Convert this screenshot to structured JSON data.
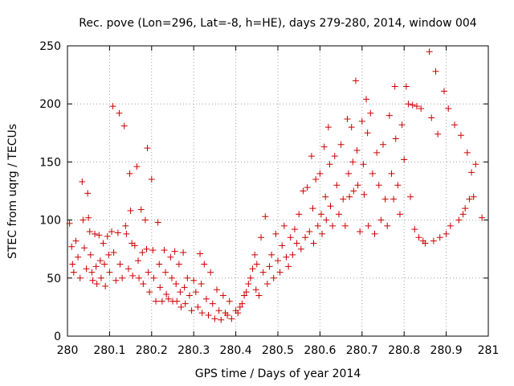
{
  "chart_data": {
    "type": "scatter",
    "title": "Rec. pove (Lon=296, Lat=-8, h=HE), days 279-280, 2014, window 004",
    "xlabel": "GPS time / Days of year 2014",
    "ylabel": "STEC from uqrg / TECUs",
    "xlim": [
      280,
      281
    ],
    "ylim": [
      0,
      250
    ],
    "x_ticks": [
      "280",
      "280.1",
      "280.2",
      "280.3",
      "280.4",
      "280.5",
      "280.6",
      "280.7",
      "280.8",
      "280.9",
      "281"
    ],
    "y_ticks": [
      "0",
      "50",
      "100",
      "150",
      "200",
      "250"
    ],
    "grid": true,
    "marker": "+",
    "marker_color": "#cc0000",
    "points": [
      [
        280.005,
        97
      ],
      [
        280.01,
        77
      ],
      [
        280.012,
        62
      ],
      [
        280.015,
        55
      ],
      [
        280.02,
        82
      ],
      [
        280.025,
        68
      ],
      [
        280.03,
        50
      ],
      [
        280.035,
        133
      ],
      [
        280.037,
        100
      ],
      [
        280.04,
        76
      ],
      [
        280.045,
        58
      ],
      [
        280.048,
        123
      ],
      [
        280.05,
        102
      ],
      [
        280.053,
        90
      ],
      [
        280.055,
        70
      ],
      [
        280.058,
        55
      ],
      [
        280.06,
        48
      ],
      [
        280.065,
        88
      ],
      [
        280.068,
        60
      ],
      [
        280.07,
        45
      ],
      [
        280.075,
        87
      ],
      [
        280.078,
        65
      ],
      [
        280.08,
        50
      ],
      [
        280.085,
        80
      ],
      [
        280.088,
        62
      ],
      [
        280.09,
        43
      ],
      [
        280.095,
        86
      ],
      [
        280.098,
        70
      ],
      [
        280.1,
        55
      ],
      [
        280.105,
        90
      ],
      [
        280.108,
        198
      ],
      [
        280.11,
        72
      ],
      [
        280.115,
        48
      ],
      [
        280.12,
        89
      ],
      [
        280.123,
        192
      ],
      [
        280.125,
        62
      ],
      [
        280.13,
        50
      ],
      [
        280.135,
        181
      ],
      [
        280.138,
        95
      ],
      [
        280.14,
        88
      ],
      [
        280.145,
        58
      ],
      [
        280.148,
        140
      ],
      [
        280.15,
        108
      ],
      [
        280.153,
        80
      ],
      [
        280.155,
        52
      ],
      [
        280.16,
        78
      ],
      [
        280.165,
        146
      ],
      [
        280.168,
        65
      ],
      [
        280.17,
        50
      ],
      [
        280.175,
        109
      ],
      [
        280.178,
        72
      ],
      [
        280.18,
        45
      ],
      [
        280.185,
        100
      ],
      [
        280.188,
        75
      ],
      [
        280.19,
        162
      ],
      [
        280.192,
        55
      ],
      [
        280.195,
        38
      ],
      [
        280.2,
        135
      ],
      [
        280.203,
        74
      ],
      [
        280.205,
        50
      ],
      [
        280.21,
        30
      ],
      [
        280.215,
        98
      ],
      [
        280.218,
        62
      ],
      [
        280.22,
        42
      ],
      [
        280.225,
        30
      ],
      [
        280.23,
        74
      ],
      [
        280.233,
        55
      ],
      [
        280.235,
        36
      ],
      [
        280.24,
        32
      ],
      [
        280.245,
        68
      ],
      [
        280.248,
        50
      ],
      [
        280.25,
        30
      ],
      [
        280.255,
        73
      ],
      [
        280.258,
        45
      ],
      [
        280.26,
        30
      ],
      [
        280.265,
        62
      ],
      [
        280.268,
        38
      ],
      [
        280.27,
        25
      ],
      [
        280.275,
        72
      ],
      [
        280.278,
        42
      ],
      [
        280.28,
        28
      ],
      [
        280.285,
        50
      ],
      [
        280.29,
        35
      ],
      [
        280.295,
        22
      ],
      [
        280.3,
        48
      ],
      [
        280.305,
        38
      ],
      [
        280.31,
        25
      ],
      [
        280.315,
        71
      ],
      [
        280.318,
        45
      ],
      [
        280.32,
        20
      ],
      [
        280.325,
        62
      ],
      [
        280.33,
        32
      ],
      [
        280.335,
        18
      ],
      [
        280.34,
        55
      ],
      [
        280.345,
        28
      ],
      [
        280.35,
        15
      ],
      [
        280.355,
        40
      ],
      [
        280.36,
        22
      ],
      [
        280.365,
        14
      ],
      [
        280.37,
        35
      ],
      [
        280.375,
        20
      ],
      [
        280.38,
        18
      ],
      [
        280.385,
        30
      ],
      [
        280.39,
        15
      ],
      [
        280.4,
        22
      ],
      [
        280.405,
        20
      ],
      [
        280.41,
        25
      ],
      [
        280.415,
        28
      ],
      [
        280.42,
        35
      ],
      [
        280.425,
        38
      ],
      [
        280.43,
        45
      ],
      [
        280.435,
        50
      ],
      [
        280.44,
        58
      ],
      [
        280.445,
        70
      ],
      [
        280.448,
        40
      ],
      [
        280.45,
        62
      ],
      [
        280.455,
        35
      ],
      [
        280.46,
        85
      ],
      [
        280.465,
        55
      ],
      [
        280.47,
        103
      ],
      [
        280.475,
        45
      ],
      [
        280.48,
        60
      ],
      [
        280.485,
        70
      ],
      [
        280.49,
        50
      ],
      [
        280.495,
        88
      ],
      [
        280.5,
        65
      ],
      [
        280.505,
        55
      ],
      [
        280.51,
        78
      ],
      [
        280.515,
        95
      ],
      [
        280.52,
        68
      ],
      [
        280.525,
        60
      ],
      [
        280.53,
        85
      ],
      [
        280.535,
        70
      ],
      [
        280.54,
        92
      ],
      [
        280.545,
        80
      ],
      [
        280.55,
        105
      ],
      [
        280.555,
        75
      ],
      [
        280.56,
        125
      ],
      [
        280.565,
        85
      ],
      [
        280.57,
        128
      ],
      [
        280.575,
        90
      ],
      [
        280.58,
        155
      ],
      [
        280.583,
        110
      ],
      [
        280.585,
        80
      ],
      [
        280.59,
        135
      ],
      [
        280.595,
        95
      ],
      [
        280.6,
        140
      ],
      [
        280.603,
        105
      ],
      [
        280.605,
        88
      ],
      [
        280.61,
        163
      ],
      [
        280.613,
        120
      ],
      [
        280.615,
        100
      ],
      [
        280.62,
        180
      ],
      [
        280.623,
        148
      ],
      [
        280.625,
        112
      ],
      [
        280.63,
        95
      ],
      [
        280.635,
        155
      ],
      [
        280.64,
        130
      ],
      [
        280.645,
        105
      ],
      [
        280.65,
        165
      ],
      [
        280.655,
        118
      ],
      [
        280.66,
        95
      ],
      [
        280.665,
        187
      ],
      [
        280.668,
        140
      ],
      [
        280.67,
        120
      ],
      [
        280.675,
        180
      ],
      [
        280.678,
        150
      ],
      [
        280.68,
        125
      ],
      [
        280.685,
        220
      ],
      [
        280.688,
        160
      ],
      [
        280.69,
        130
      ],
      [
        280.695,
        90
      ],
      [
        280.7,
        185
      ],
      [
        280.703,
        148
      ],
      [
        280.705,
        122
      ],
      [
        280.71,
        204
      ],
      [
        280.713,
        175
      ],
      [
        280.715,
        95
      ],
      [
        280.72,
        192
      ],
      [
        280.725,
        140
      ],
      [
        280.73,
        88
      ],
      [
        280.735,
        158
      ],
      [
        280.74,
        130
      ],
      [
        280.745,
        100
      ],
      [
        280.75,
        165
      ],
      [
        280.755,
        118
      ],
      [
        280.76,
        95
      ],
      [
        280.765,
        190
      ],
      [
        280.77,
        140
      ],
      [
        280.775,
        118
      ],
      [
        280.778,
        215
      ],
      [
        280.78,
        170
      ],
      [
        280.785,
        130
      ],
      [
        280.79,
        105
      ],
      [
        280.795,
        182
      ],
      [
        280.8,
        152
      ],
      [
        280.805,
        215
      ],
      [
        280.81,
        200
      ],
      [
        280.815,
        120
      ],
      [
        280.82,
        199
      ],
      [
        280.825,
        92
      ],
      [
        280.83,
        198
      ],
      [
        280.835,
        85
      ],
      [
        280.84,
        196
      ],
      [
        280.845,
        82
      ],
      [
        280.85,
        80
      ],
      [
        280.86,
        245
      ],
      [
        280.865,
        188
      ],
      [
        280.87,
        82
      ],
      [
        280.875,
        228
      ],
      [
        280.88,
        174
      ],
      [
        280.885,
        85
      ],
      [
        280.895,
        211
      ],
      [
        280.9,
        88
      ],
      [
        280.905,
        196
      ],
      [
        280.91,
        95
      ],
      [
        280.92,
        182
      ],
      [
        280.93,
        100
      ],
      [
        280.935,
        173
      ],
      [
        280.94,
        105
      ],
      [
        280.945,
        110
      ],
      [
        280.95,
        158
      ],
      [
        280.955,
        118
      ],
      [
        280.96,
        141
      ],
      [
        280.965,
        120
      ],
      [
        280.97,
        148
      ],
      [
        280.985,
        102
      ]
    ]
  }
}
